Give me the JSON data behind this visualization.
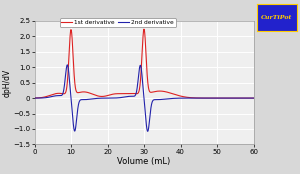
{
  "title": "",
  "xlabel": "Volume (mL)",
  "ylabel": "dpH/dV",
  "xlim": [
    0,
    60
  ],
  "ylim": [
    -1.5,
    2.5
  ],
  "xticks": [
    0,
    10,
    20,
    30,
    40,
    50,
    60
  ],
  "yticks": [
    -1.5,
    -1.0,
    -0.5,
    0.0,
    0.5,
    1.0,
    1.5,
    2.0,
    2.5
  ],
  "legend_1st": "1st derivative",
  "legend_2nd": "2nd derivative",
  "color_1st": "#dd2222",
  "color_2nd": "#2222aa",
  "bg_color": "#d8d8d8",
  "plot_bg": "#efefef",
  "grid_color": "#ffffff",
  "curtipot_bg": "#2222cc",
  "curtipot_text": "#ffcc00",
  "peak1_x": 10,
  "peak2_x": 30,
  "lw1": 0.8,
  "lw2": 0.8
}
